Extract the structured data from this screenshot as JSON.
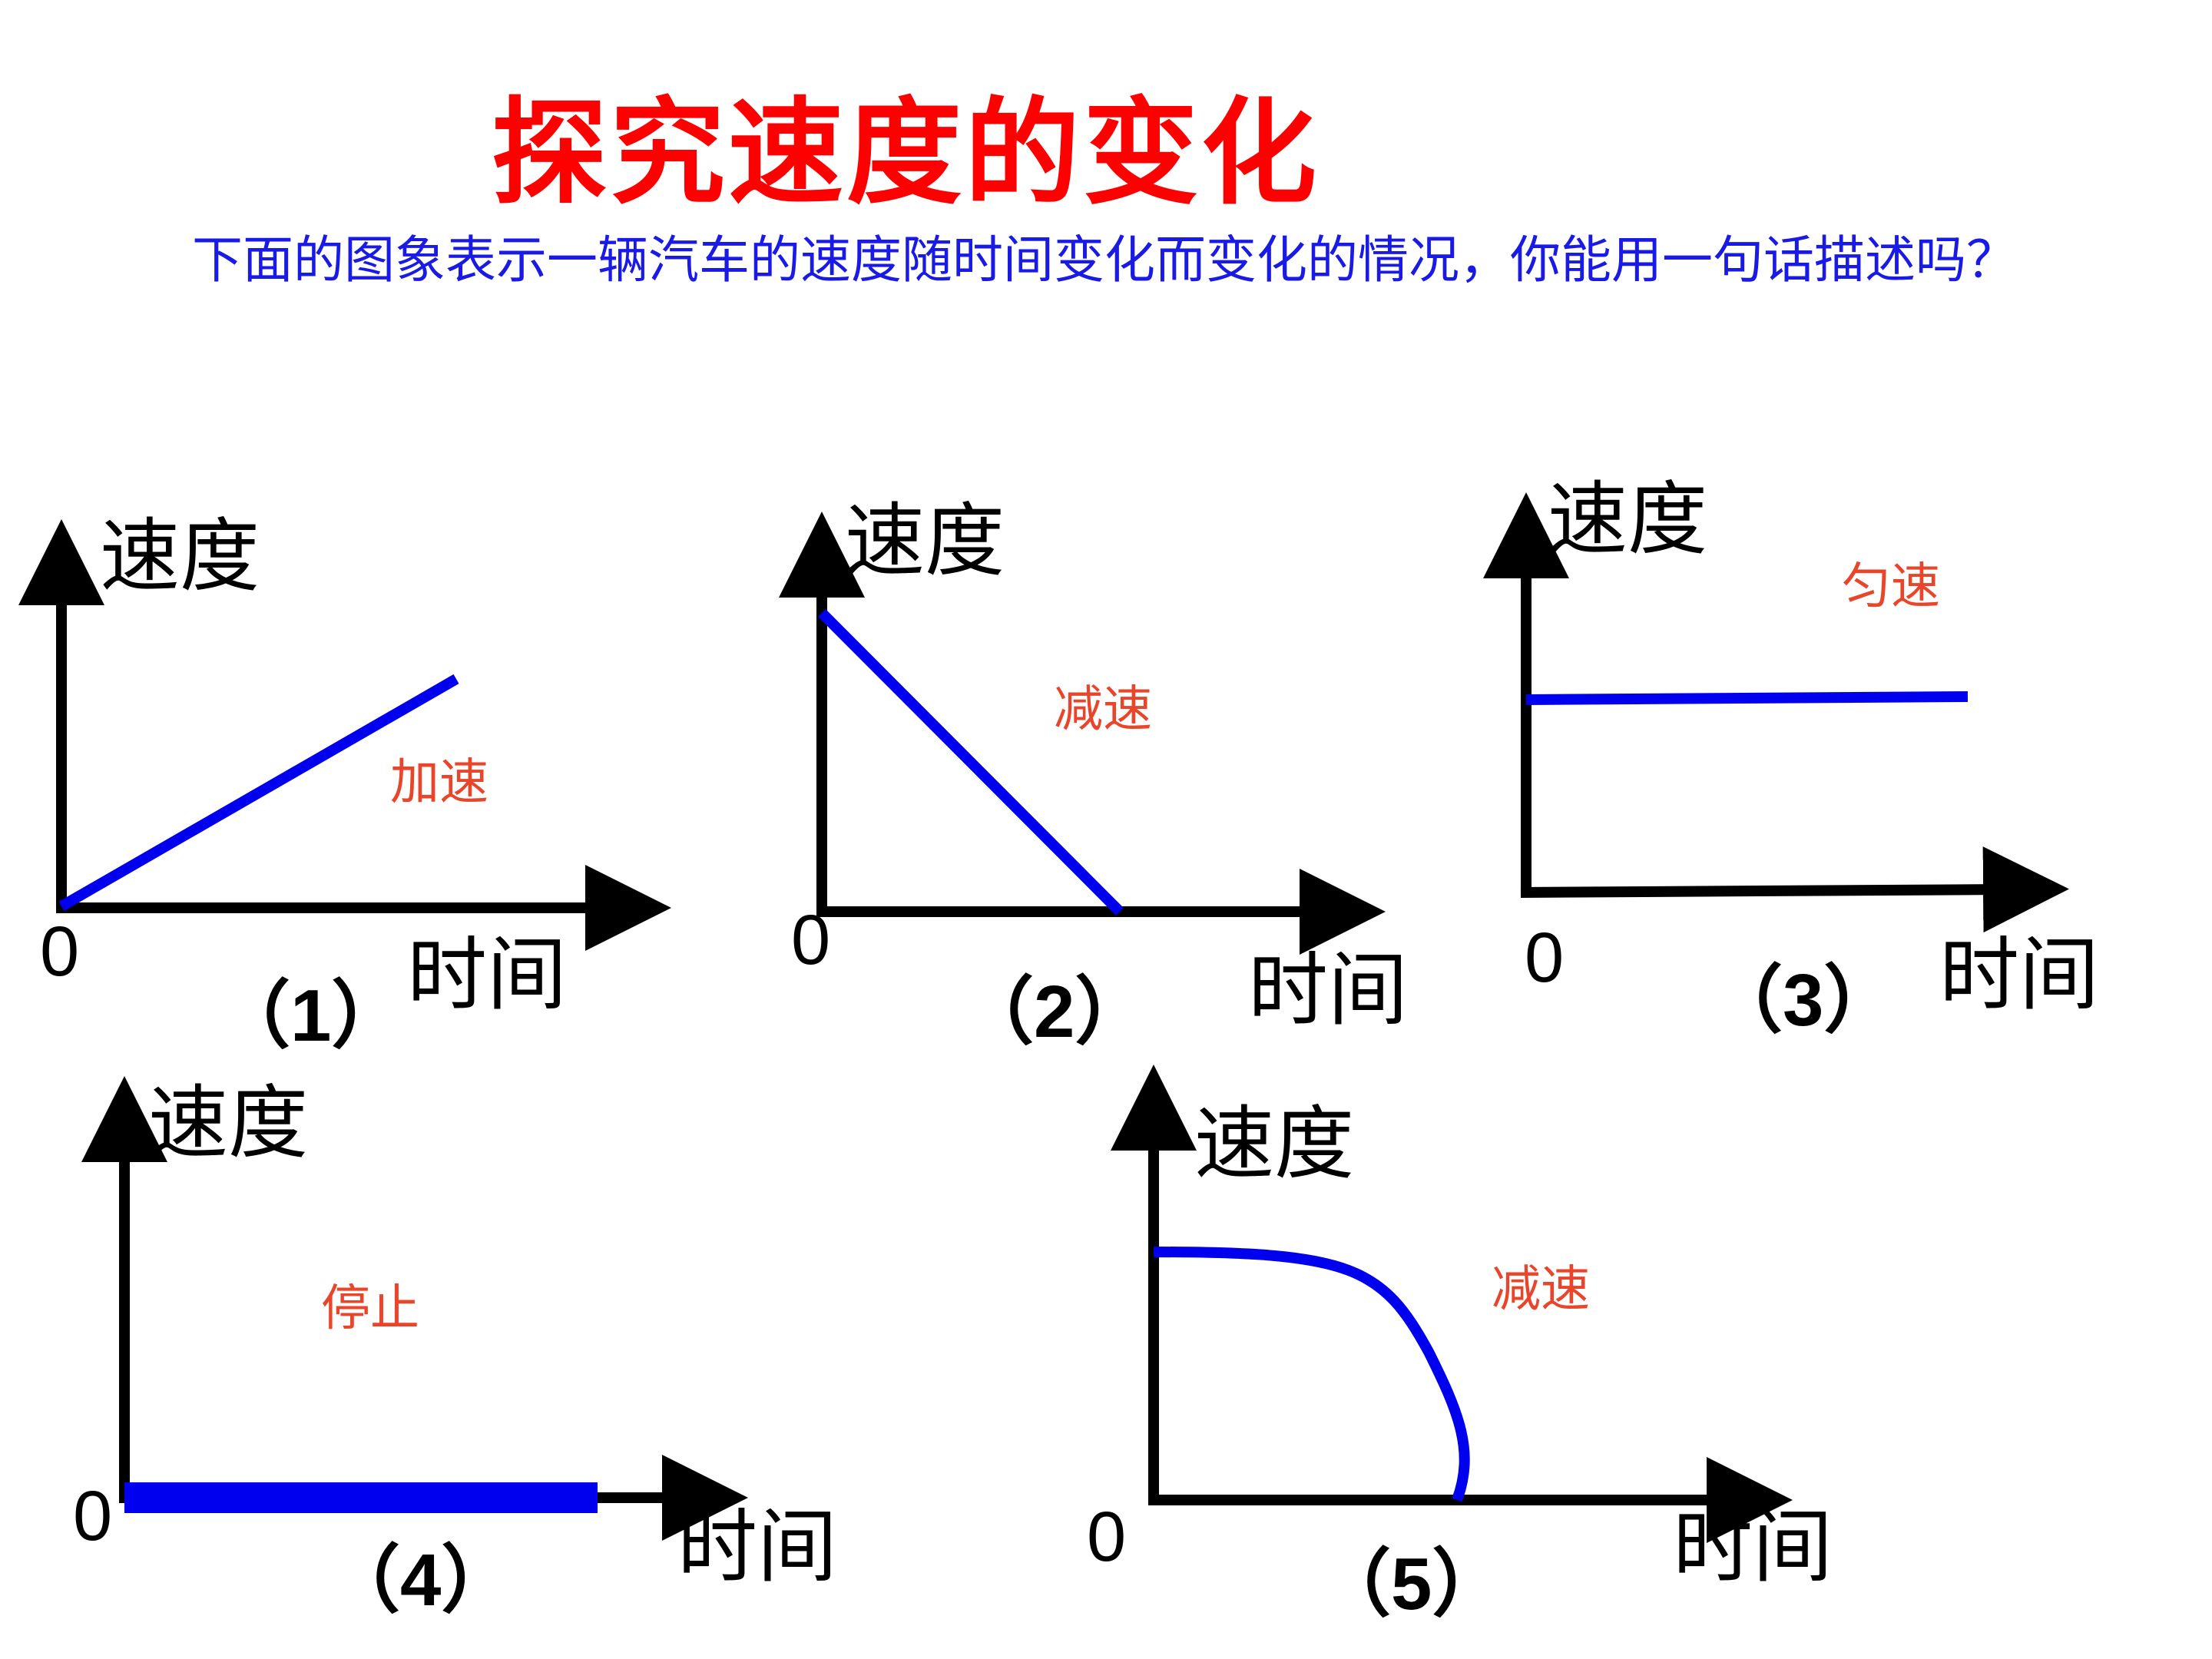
{
  "title": "探究速度的变化",
  "description": "下面的图象表示一辆汽车的速度随时间变化而变化的情况，你能用一句话描述吗？",
  "colors": {
    "title": "#ff0000",
    "description": "#1a1ae6",
    "curve": "#0000ee",
    "note": "#e8452a",
    "axis": "#000000"
  },
  "graphs": [
    {
      "number": "（1）",
      "y_label": "速度",
      "x_label": "时间",
      "origin": "0",
      "note": "加速",
      "shape": "increasing-line"
    },
    {
      "number": "（2）",
      "y_label": "速度",
      "x_label": "时间",
      "origin": "0",
      "note": "减速",
      "shape": "decreasing-line"
    },
    {
      "number": "（3）",
      "y_label": "速度",
      "x_label": "时间",
      "origin": "0",
      "note": "匀速",
      "shape": "constant-line"
    },
    {
      "number": "（4）",
      "y_label": "速度",
      "x_label": "时间",
      "origin": "0",
      "note": "停止",
      "shape": "zero-line"
    },
    {
      "number": "（5）",
      "y_label": "速度",
      "x_label": "时间",
      "origin": "0",
      "note": "减速",
      "shape": "decreasing-curve"
    }
  ]
}
